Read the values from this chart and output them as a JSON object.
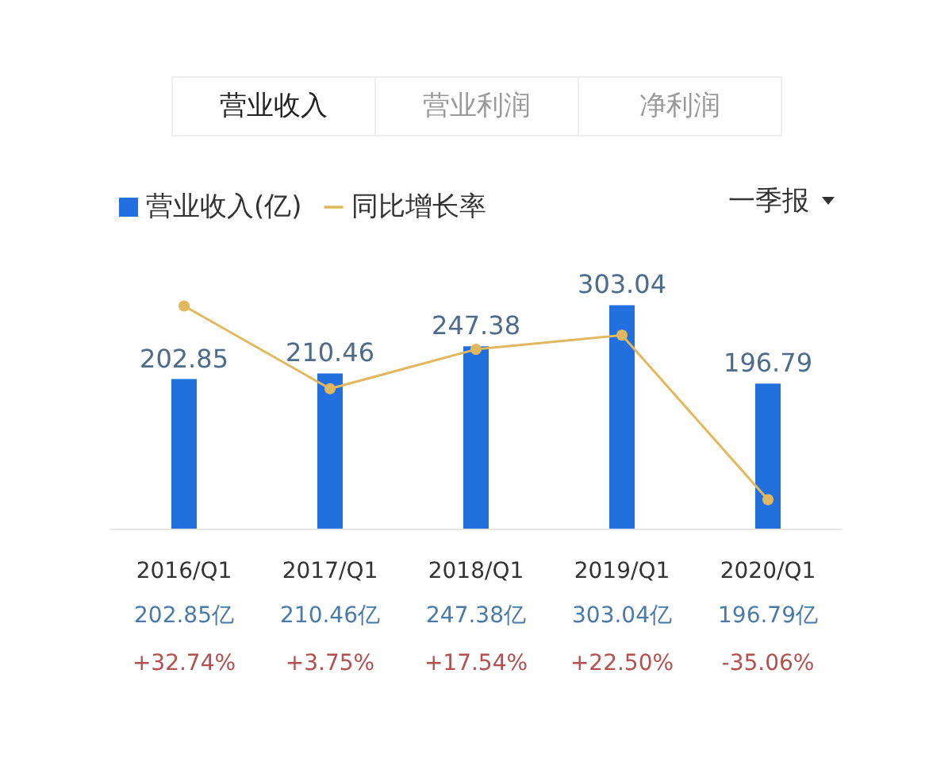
{
  "chart_data": {
    "type": "bar",
    "categories": [
      "2016/Q1",
      "2017/Q1",
      "2018/Q1",
      "2019/Q1",
      "2020/Q1"
    ],
    "series": [
      {
        "name": "营业收入(亿)",
        "color": "#2270e0",
        "values": [
          202.85,
          210.46,
          247.38,
          303.04,
          196.79
        ]
      },
      {
        "name": "同比增长率",
        "type": "line",
        "axis": "y2",
        "color": "#e2b85e",
        "values": [
          32.74,
          3.75,
          17.54,
          22.5,
          -35.06
        ],
        "value_labels": [
          "+32.74%",
          "+3.75%",
          "+17.54%",
          "+22.50%",
          "-35.06%"
        ]
      }
    ],
    "tick_labels": "x",
    "data_labels": true,
    "legend": "top left",
    "grid": false,
    "marker": "circle",
    "annotations": [
      "营业收入",
      "营业利润",
      "净利润",
      "一季报",
      "202.85亿",
      "210.46亿",
      "247.38亿",
      "303.04亿",
      "196.79亿"
    ]
  }
}
